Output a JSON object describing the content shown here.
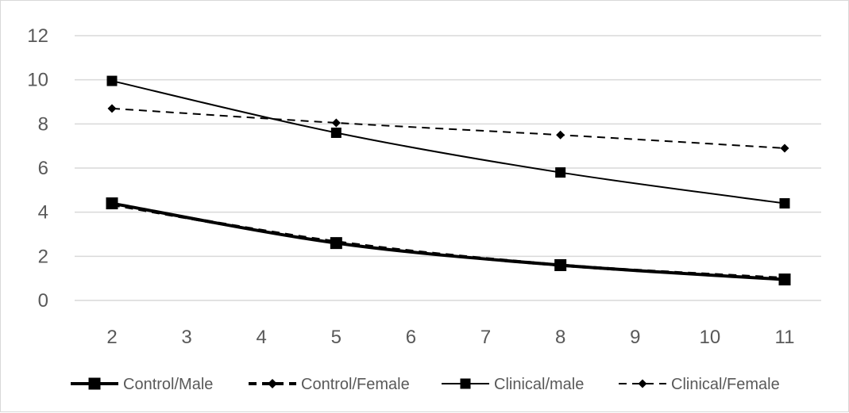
{
  "chart_data": {
    "type": "line",
    "title": "",
    "xlabel": "",
    "ylabel": "",
    "x": [
      2,
      5,
      8,
      11
    ],
    "xlim": [
      2,
      11
    ],
    "ylim": [
      0,
      12
    ],
    "x_ticks": [
      "2",
      "3",
      "4",
      "5",
      "6",
      "7",
      "8",
      "9",
      "10",
      "11"
    ],
    "y_ticks": [
      "0",
      "2",
      "4",
      "6",
      "8",
      "10",
      "12"
    ],
    "grid": "horizontal",
    "legend_position": "bottom",
    "series": [
      {
        "name": "Control/Male",
        "values": [
          4.4,
          2.6,
          1.6,
          0.95
        ],
        "marker": "square",
        "dash": "solid",
        "weight": "thick",
        "color": "#000000"
      },
      {
        "name": "Control/Female",
        "values": [
          4.35,
          2.65,
          1.6,
          1.0
        ],
        "marker": "diamond",
        "dash": "dashed",
        "weight": "thick",
        "color": "#000000"
      },
      {
        "name": "Clinical/male",
        "values": [
          9.95,
          7.6,
          5.8,
          4.4
        ],
        "marker": "square",
        "dash": "solid",
        "weight": "thin",
        "color": "#000000"
      },
      {
        "name": "Clinical/Female",
        "values": [
          8.7,
          8.05,
          7.5,
          6.9
        ],
        "marker": "diamond",
        "dash": "dashed",
        "weight": "thin",
        "color": "#000000"
      }
    ]
  }
}
